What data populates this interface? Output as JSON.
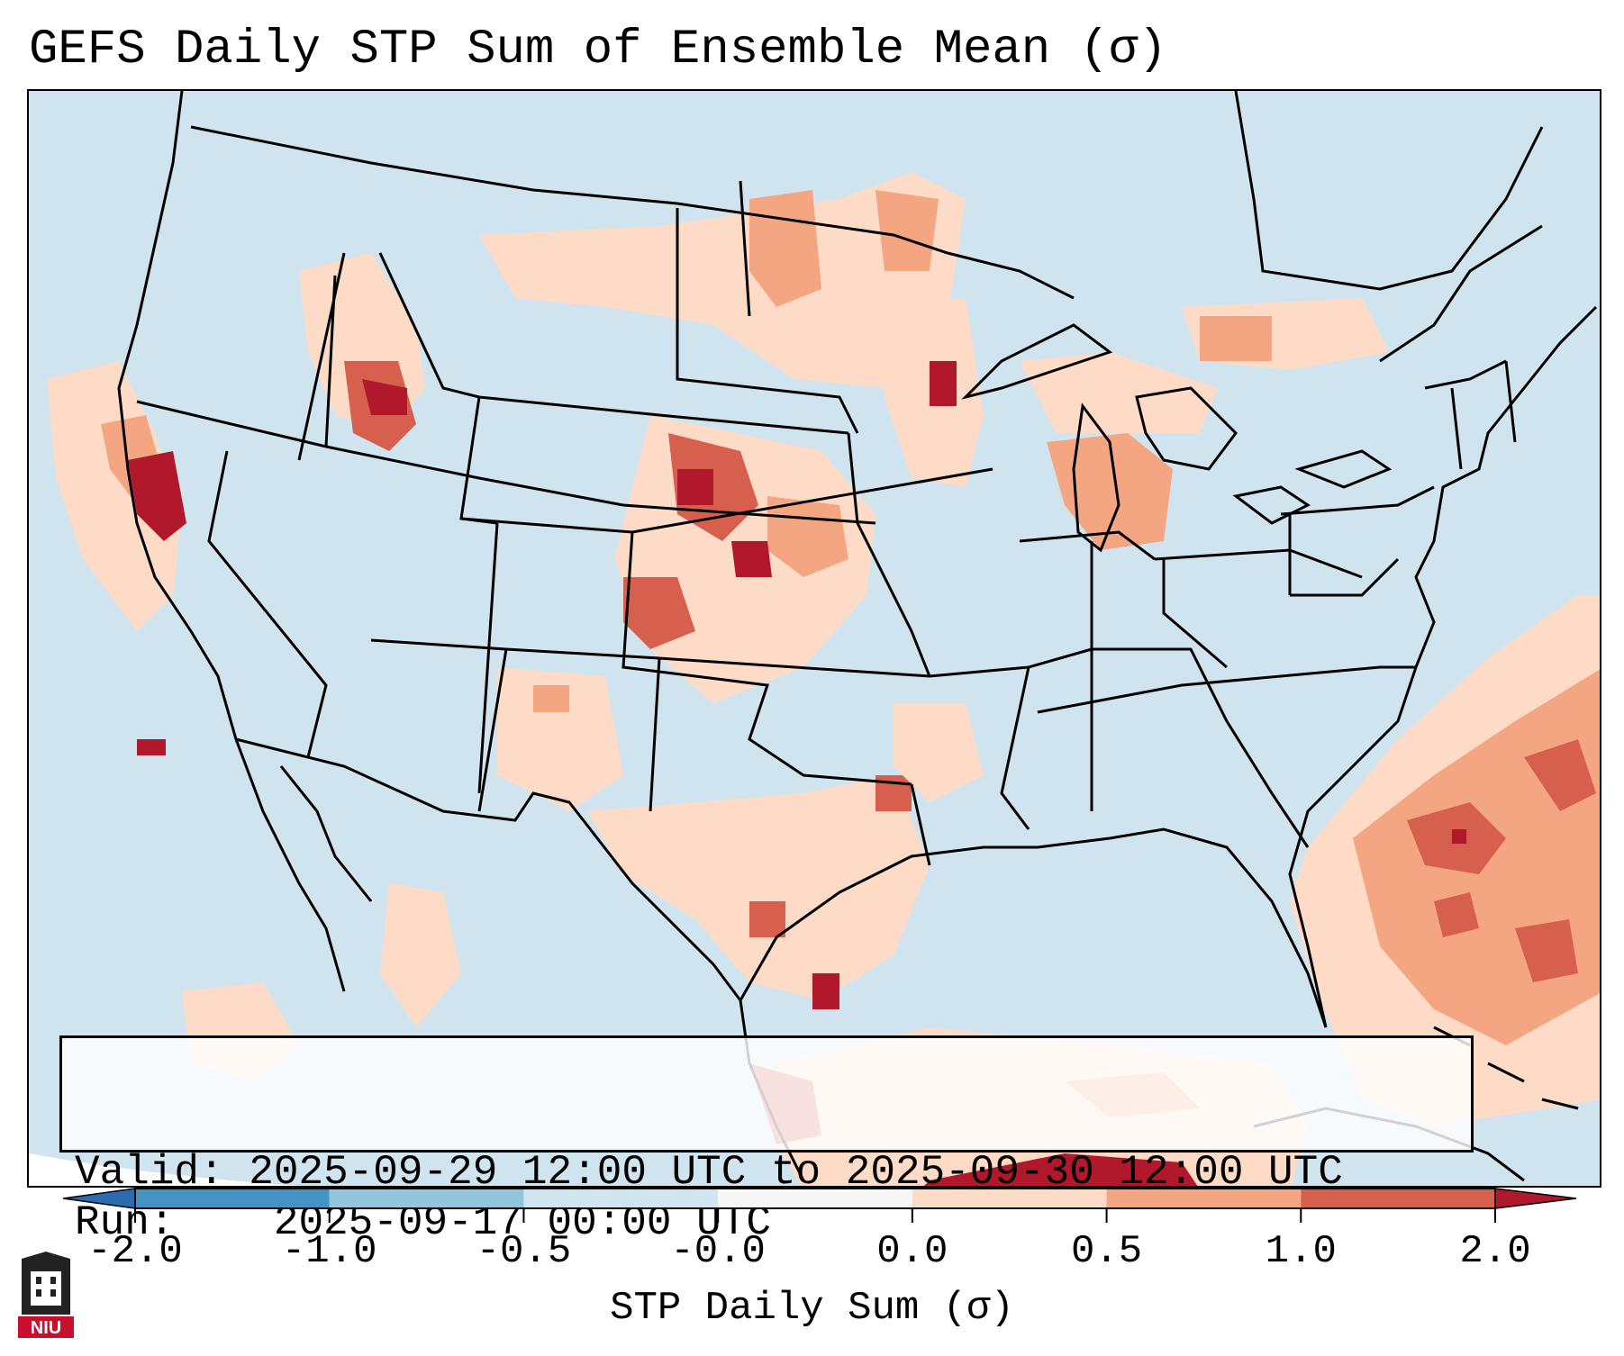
{
  "title": "GEFS Daily STP Sum of Ensemble Mean (σ)",
  "info": {
    "valid_label": "Valid:",
    "valid_value": "2025-09-29 12:00 UTC to 2025-09-30 12:00 UTC",
    "run_label": "Run:",
    "run_value": "2025-09-17 00:00 UTC"
  },
  "colorbar": {
    "label": "STP Daily Sum (σ)",
    "ticks": [
      "-2.0",
      "-1.0",
      "-0.5",
      "-0.0",
      "0.0",
      "0.5",
      "1.0",
      "2.0"
    ],
    "bins": [
      {
        "range": "< -2.0",
        "color": "#2b6cb0"
      },
      {
        "range": "-2.0 to -1.0",
        "color": "#4393c3"
      },
      {
        "range": "-1.0 to -0.5",
        "color": "#92c5de"
      },
      {
        "range": "-0.5 to -0.0",
        "color": "#d1e5f0"
      },
      {
        "range": "-0.0 to 0.0",
        "color": "#f7f7f7"
      },
      {
        "range": "0.0 to 0.5",
        "color": "#fddbc7"
      },
      {
        "range": "0.5 to 1.0",
        "color": "#f4a582"
      },
      {
        "range": "1.0 to 2.0",
        "color": "#d6604d"
      },
      {
        "range": "> 2.0",
        "color": "#b2182b"
      }
    ]
  },
  "logo": {
    "text": "NIU",
    "icon": "niu-logo-icon"
  },
  "colors": {
    "background_bin": "#d0e4f0",
    "low": "#fddbc7",
    "moderate": "#f4a582",
    "high": "#d6604d",
    "very_high": "#b2182b"
  }
}
